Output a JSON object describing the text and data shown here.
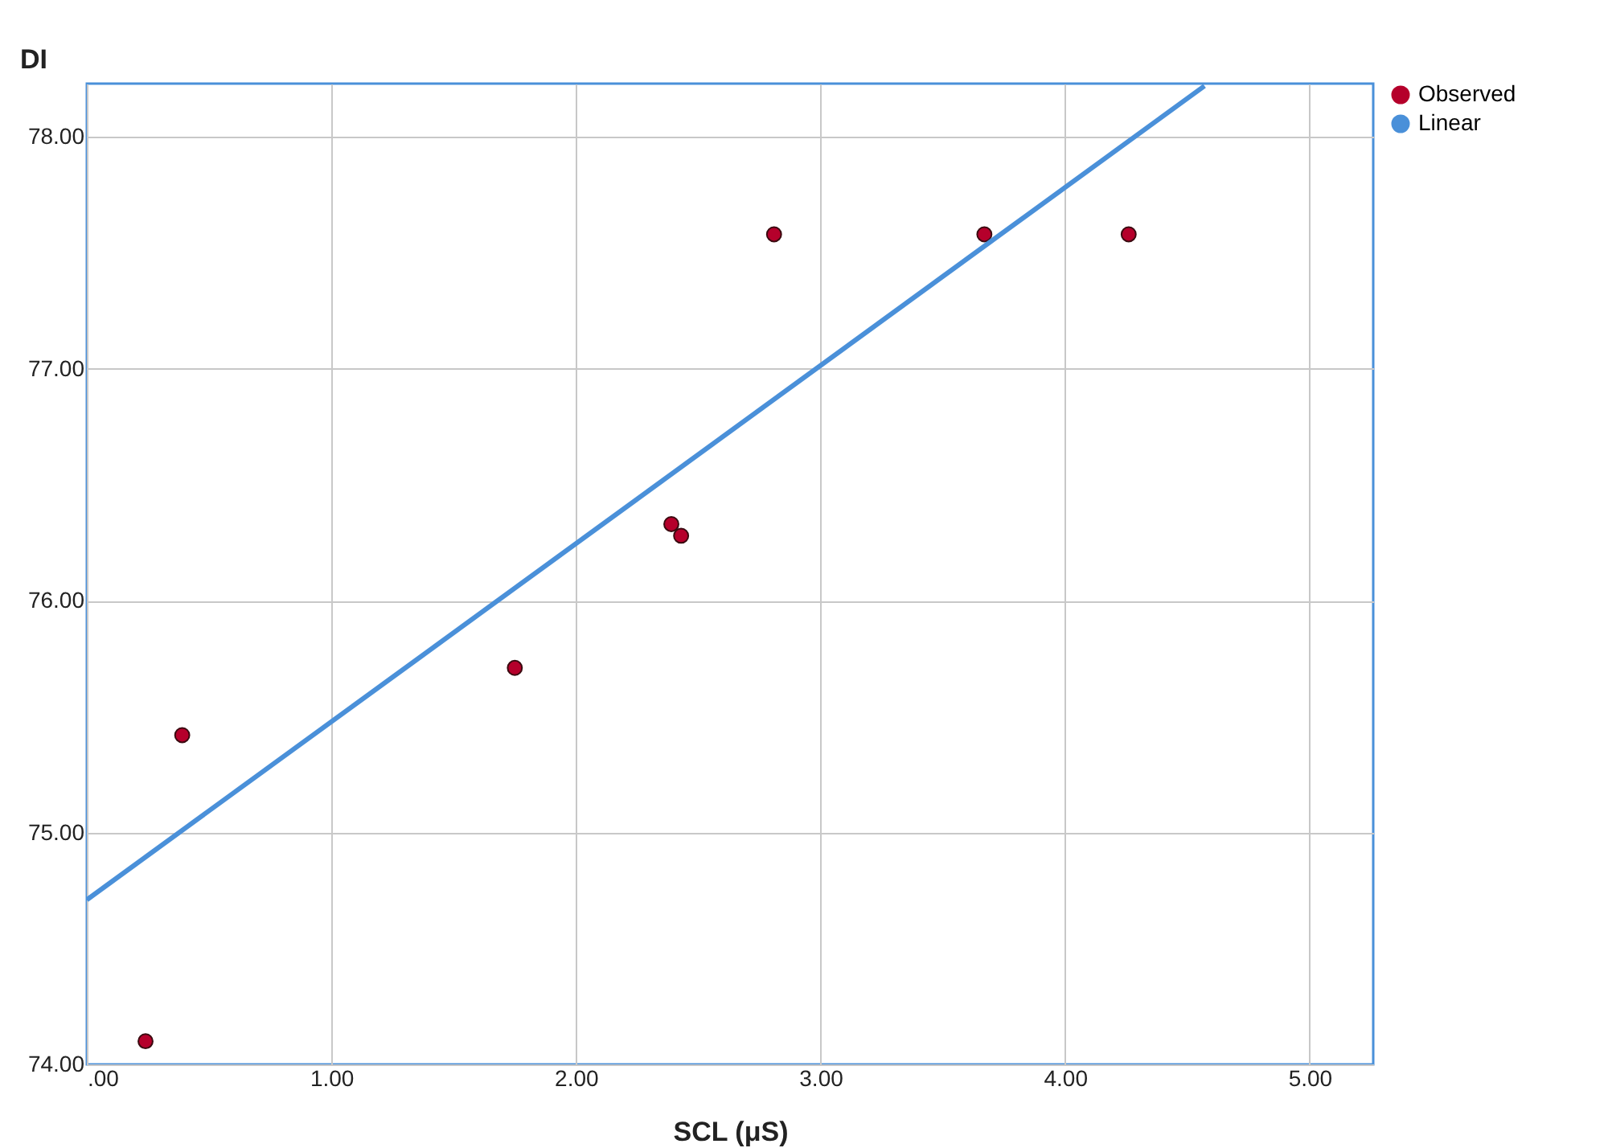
{
  "chart_data": {
    "type": "scatter",
    "xlabel": "SCL (μS)",
    "ylabel": "DI",
    "xlim": [
      0,
      5.26
    ],
    "ylim": [
      74,
      78.23
    ],
    "xticks": [
      {
        "value": 0,
        "label": ".00"
      },
      {
        "value": 1,
        "label": "1.00"
      },
      {
        "value": 2,
        "label": "2.00"
      },
      {
        "value": 3,
        "label": "3.00"
      },
      {
        "value": 4,
        "label": "4.00"
      },
      {
        "value": 5,
        "label": "5.00"
      }
    ],
    "yticks": [
      {
        "value": 74,
        "label": "74.00"
      },
      {
        "value": 75,
        "label": "75.00"
      },
      {
        "value": 76,
        "label": "76.00"
      },
      {
        "value": 77,
        "label": "77.00"
      },
      {
        "value": 78,
        "label": "78.00"
      }
    ],
    "grid": true,
    "legend": "top right",
    "series": [
      {
        "name": "Observed",
        "marker": "circle",
        "color": "#b5002b",
        "x": [
          0.24,
          0.39,
          1.75,
          2.39,
          2.43,
          2.81,
          3.67,
          4.26
        ],
        "values": [
          74.1,
          75.42,
          75.71,
          76.33,
          76.28,
          77.58,
          77.58,
          77.58
        ]
      },
      {
        "name": "Linear",
        "type": "line",
        "marker": "none",
        "color": "#4a90d9",
        "x": [
          0,
          4.57
        ],
        "values": [
          74.71,
          78.22
        ]
      }
    ]
  }
}
